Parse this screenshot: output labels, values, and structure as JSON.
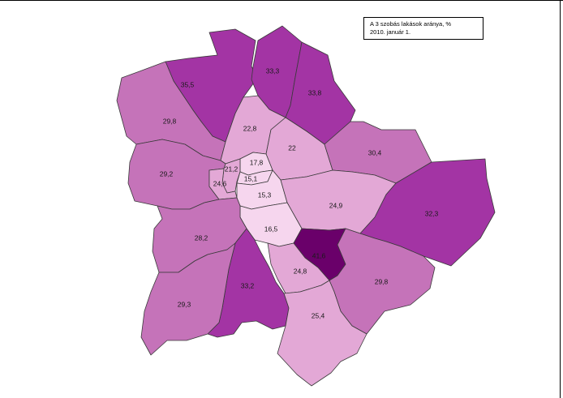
{
  "legend": {
    "title": "A 3 szobás lakások aránya, %",
    "date": "2010. január 1."
  },
  "colors": {
    "c1": "#f6d6ee",
    "c2": "#e3a8d6",
    "c3": "#c573b9",
    "c4": "#a334a4",
    "c5": "#6a006a"
  },
  "districts": [
    {
      "id": "d35_5",
      "label": "35,5",
      "color": "c4"
    },
    {
      "id": "d33_3",
      "label": "33,3",
      "color": "c4"
    },
    {
      "id": "d33_8",
      "label": "33,8",
      "color": "c4"
    },
    {
      "id": "d29_8nw",
      "label": "29,8",
      "color": "c3"
    },
    {
      "id": "d22_8",
      "label": "22,8",
      "color": "c2"
    },
    {
      "id": "d22",
      "label": "22",
      "color": "c2"
    },
    {
      "id": "d30_4",
      "label": "30,4",
      "color": "c3"
    },
    {
      "id": "d29_2",
      "label": "29,2",
      "color": "c3"
    },
    {
      "id": "d17_8",
      "label": "17,8",
      "color": "c1"
    },
    {
      "id": "d21_2",
      "label": "21,2",
      "color": "c2"
    },
    {
      "id": "d15_1",
      "label": "15,1",
      "color": "c1"
    },
    {
      "id": "d24_6",
      "label": "24,6",
      "color": "c2"
    },
    {
      "id": "d15_3",
      "label": "15,3",
      "color": "c1"
    },
    {
      "id": "d24_9",
      "label": "24,9",
      "color": "c2"
    },
    {
      "id": "d32_3",
      "label": "32,3",
      "color": "c4"
    },
    {
      "id": "d16_5",
      "label": "16,5",
      "color": "c1"
    },
    {
      "id": "d28_2",
      "label": "28,2",
      "color": "c3"
    },
    {
      "id": "d41_6",
      "label": "41,6",
      "color": "c5"
    },
    {
      "id": "d24_8",
      "label": "24,8",
      "color": "c2"
    },
    {
      "id": "d29_8se",
      "label": "29,8",
      "color": "c3"
    },
    {
      "id": "d33_2",
      "label": "33,2",
      "color": "c4"
    },
    {
      "id": "d29_3",
      "label": "29,3",
      "color": "c3"
    },
    {
      "id": "d25_4",
      "label": "25,4",
      "color": "c2"
    }
  ]
}
